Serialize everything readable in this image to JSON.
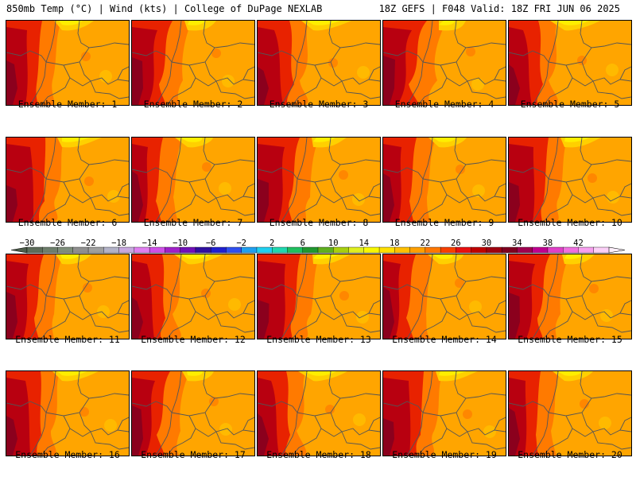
{
  "header": {
    "left": "850mb Temp (°C) | Wind (kts) | College of DuPage NEXLAB",
    "right": "18Z GEFS | F048 Valid: 18Z FRI JUN 06 2025"
  },
  "members": [
    {
      "caption": "Ensemble Member: 1"
    },
    {
      "caption": "Ensemble Member: 2"
    },
    {
      "caption": "Ensemble Member: 3"
    },
    {
      "caption": "Ensemble Member: 4"
    },
    {
      "caption": "Ensemble Member: 5"
    },
    {
      "caption": "Ensemble Member: 6"
    },
    {
      "caption": "Ensemble Member: 7"
    },
    {
      "caption": "Ensemble Member: 8"
    },
    {
      "caption": "Ensemble Member: 9"
    },
    {
      "caption": "Ensemble Member: 10"
    },
    {
      "caption": "Ensemble Member: 11"
    },
    {
      "caption": "Ensemble Member: 12"
    },
    {
      "caption": "Ensemble Member: 13"
    },
    {
      "caption": "Ensemble Member: 14"
    },
    {
      "caption": "Ensemble Member: 15"
    },
    {
      "caption": "Ensemble Member: 16"
    },
    {
      "caption": "Ensemble Member: 17"
    },
    {
      "caption": "Ensemble Member: 18"
    },
    {
      "caption": "Ensemble Member: 19"
    },
    {
      "caption": "Ensemble Member: 20"
    }
  ],
  "colorbar": {
    "tick_labels": [
      "−30",
      "−26",
      "−22",
      "−18",
      "−14",
      "−10",
      "−6",
      "−2",
      "2",
      "6",
      "10",
      "14",
      "18",
      "22",
      "26",
      "30",
      "34",
      "38",
      "42"
    ],
    "colors": [
      "#5d6d5b",
      "#6e7f6c",
      "#7f8f7c",
      "#909090",
      "#a0a0a0",
      "#b3b3c8",
      "#c8a8e0",
      "#e080f0",
      "#d050e8",
      "#a020c8",
      "#7010b8",
      "#3010a0",
      "#2020d0",
      "#3050f0",
      "#20a0f0",
      "#20d0f0",
      "#20d8b0",
      "#20c060",
      "#209830",
      "#60b020",
      "#a8d010",
      "#e0f020",
      "#f8f800",
      "#ffe000",
      "#ffc000",
      "#ffa000",
      "#ff7800",
      "#f84000",
      "#e81010",
      "#c00000",
      "#a00010",
      "#800020",
      "#a00050",
      "#c00090",
      "#e040c8",
      "#f070e0",
      "#f8a0f0",
      "#fcd0f8"
    ]
  },
  "map_colors": {
    "base": "#ffa500",
    "warm": "#ff7a00",
    "hot": "#e82200",
    "core": "#b80010",
    "peak": "#800020",
    "cool": "#ffd000",
    "cold": "#ffee00",
    "lines": "#555555"
  }
}
